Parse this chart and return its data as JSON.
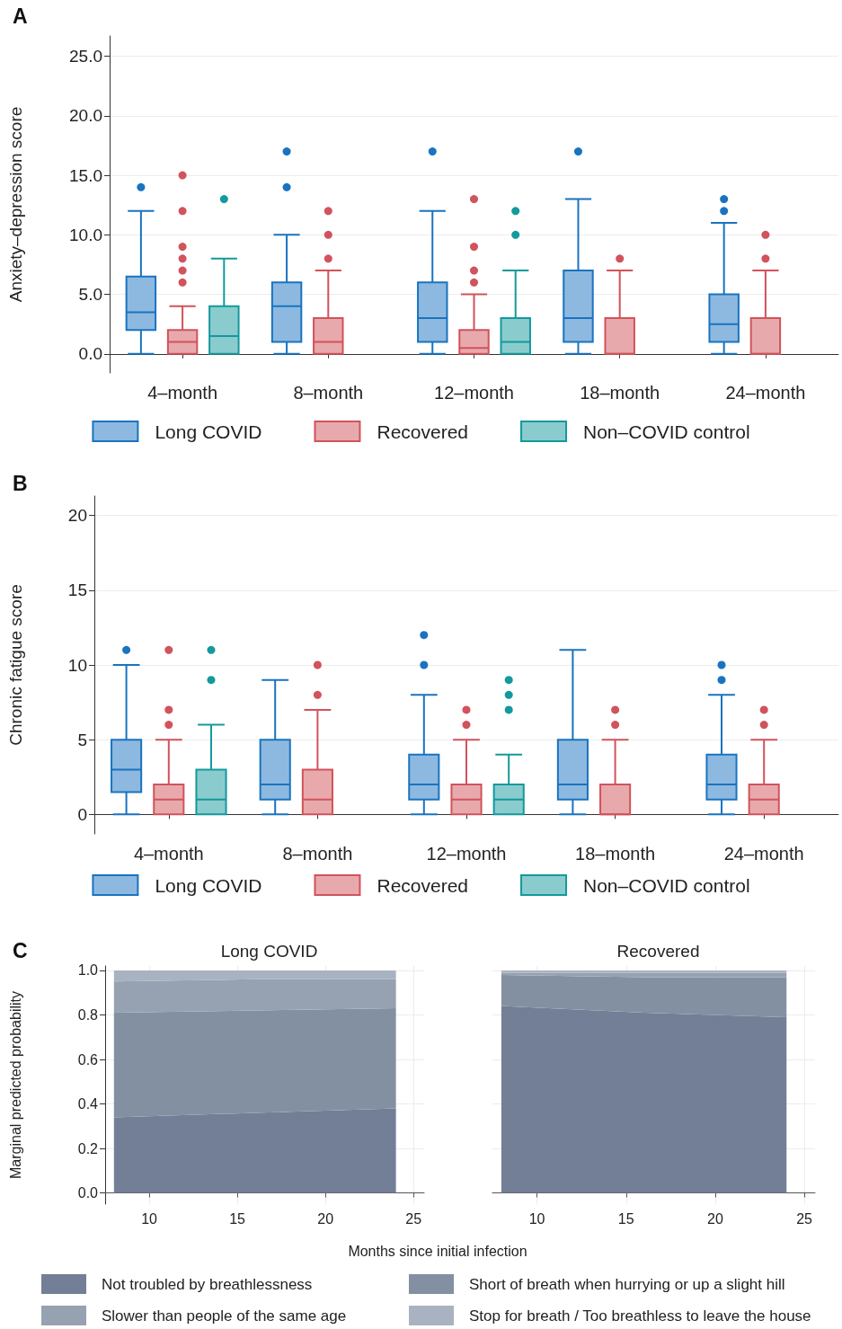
{
  "chart_data": [
    {
      "type": "box",
      "annotations": [
        "A"
      ],
      "ylabel": "Anxiety–depression score",
      "categories": [
        "4–month",
        "8–month",
        "12–month",
        "18–month",
        "24–month"
      ],
      "ylim": [
        -1.6,
        26.7
      ],
      "yticks": [
        {
          "value": 0,
          "label": "0.0"
        },
        {
          "value": 5,
          "label": "5.0"
        },
        {
          "value": 10,
          "label": "10.0"
        },
        {
          "value": 15,
          "label": "15.0"
        },
        {
          "value": 20,
          "label": "20.0"
        },
        {
          "value": 25,
          "label": "25.0"
        }
      ],
      "grid": "y",
      "legend": "bottom",
      "series": [
        {
          "name": "Long COVID",
          "color": "#1a73c0",
          "boxes": [
            {
              "low": 0,
              "q1": 2,
              "median": 3.5,
              "q3": 6.5,
              "high": 12,
              "outliers": [
                14
              ]
            },
            {
              "low": 0,
              "q1": 1,
              "median": 4,
              "q3": 6,
              "high": 10,
              "outliers": [
                14,
                17
              ]
            },
            {
              "low": 0,
              "q1": 1,
              "median": 3,
              "q3": 6,
              "high": 12,
              "outliers": [
                17
              ]
            },
            {
              "low": 0,
              "q1": 1,
              "median": 3,
              "q3": 7,
              "high": 13,
              "outliers": [
                17
              ]
            },
            {
              "low": 0,
              "q1": 1,
              "median": 2.5,
              "q3": 5,
              "high": 11,
              "outliers": [
                12,
                13
              ]
            }
          ]
        },
        {
          "name": "Recovered",
          "color": "#d1535b",
          "boxes": [
            {
              "low": 0,
              "q1": 0,
              "median": 1,
              "q3": 2,
              "high": 4,
              "outliers": [
                6,
                7,
                8,
                9,
                12,
                15
              ]
            },
            {
              "low": 0,
              "q1": 0,
              "median": 1,
              "q3": 3,
              "high": 7,
              "outliers": [
                8,
                10,
                12
              ]
            },
            {
              "low": 0,
              "q1": 0,
              "median": 0.5,
              "q3": 2,
              "high": 5,
              "outliers": [
                6,
                7,
                9,
                13
              ]
            },
            {
              "low": 0,
              "q1": 0,
              "median": 0,
              "q3": 3,
              "high": 7,
              "outliers": [
                8
              ]
            },
            {
              "low": 0,
              "q1": 0,
              "median": 0,
              "q3": 3,
              "high": 7,
              "outliers": [
                8,
                10
              ]
            }
          ]
        },
        {
          "name": "Non–COVID control",
          "color": "#14999c",
          "boxes": [
            {
              "low": 0,
              "q1": 0,
              "median": 1.5,
              "q3": 4,
              "high": 8,
              "outliers": [
                13
              ]
            },
            null,
            {
              "low": 0,
              "q1": 0,
              "median": 1,
              "q3": 3,
              "high": 7,
              "outliers": [
                10,
                12
              ]
            },
            null,
            null
          ]
        }
      ]
    },
    {
      "type": "box",
      "annotations": [
        "B"
      ],
      "ylabel": "Chronic fatigue score",
      "categories": [
        "4–month",
        "8–month",
        "12–month",
        "18–month",
        "24–month"
      ],
      "ylim": [
        -1.3,
        21.3
      ],
      "yticks": [
        0,
        5,
        10,
        15,
        20
      ],
      "grid": "y",
      "legend": "bottom",
      "series": [
        {
          "name": "Long COVID",
          "color": "#1a73c0",
          "boxes": [
            {
              "low": 0,
              "q1": 1.5,
              "median": 3,
              "q3": 5,
              "high": 10,
              "outliers": [
                11
              ]
            },
            {
              "low": 0,
              "q1": 1,
              "median": 2,
              "q3": 5,
              "high": 9
            },
            {
              "low": 0,
              "q1": 1,
              "median": 2,
              "q3": 4,
              "high": 8,
              "outliers": [
                10,
                12
              ]
            },
            {
              "low": 0,
              "q1": 1,
              "median": 2,
              "q3": 5,
              "high": 11
            },
            {
              "low": 0,
              "q1": 1,
              "median": 2,
              "q3": 4,
              "high": 8,
              "outliers": [
                9,
                10
              ]
            }
          ]
        },
        {
          "name": "Recovered",
          "color": "#d1535b",
          "boxes": [
            {
              "low": 0,
              "q1": 0,
              "median": 1,
              "q3": 2,
              "high": 5,
              "outliers": [
                6,
                7,
                11
              ]
            },
            {
              "low": 0,
              "q1": 0,
              "median": 1,
              "q3": 3,
              "high": 7,
              "outliers": [
                8,
                10
              ]
            },
            {
              "low": 0,
              "q1": 0,
              "median": 1,
              "q3": 2,
              "high": 5,
              "outliers": [
                6,
                7
              ]
            },
            {
              "low": 0,
              "q1": 0,
              "median": 0,
              "q3": 2,
              "high": 5,
              "outliers": [
                6,
                7
              ]
            },
            {
              "low": 0,
              "q1": 0,
              "median": 1,
              "q3": 2,
              "high": 5,
              "outliers": [
                6,
                7
              ]
            }
          ]
        },
        {
          "name": "Non–COVID control",
          "color": "#14999c",
          "boxes": [
            {
              "low": 0,
              "q1": 0,
              "median": 1,
              "q3": 3,
              "high": 6,
              "outliers": [
                9,
                11
              ]
            },
            null,
            {
              "low": 0,
              "q1": 0,
              "median": 1,
              "q3": 2,
              "high": 4,
              "outliers": [
                7,
                8,
                9
              ]
            },
            null,
            null
          ]
        }
      ]
    },
    {
      "type": "area",
      "stacked": true,
      "annotations": [
        "C"
      ],
      "title": "Long COVID",
      "xlabel": "Months since initial infection",
      "ylabel": "Marginal predicted probability",
      "x": [
        8,
        16,
        24
      ],
      "xlim": [
        7.5,
        25.6
      ],
      "xticks": [
        10,
        15,
        20,
        25
      ],
      "ylim": [
        -0.05,
        1.02
      ],
      "yticks": [
        {
          "value": 0,
          "label": "0.0"
        },
        {
          "value": 0.2,
          "label": "0.2"
        },
        {
          "value": 0.4,
          "label": "0.4"
        },
        {
          "value": 0.6,
          "label": "0.6"
        },
        {
          "value": 0.8,
          "label": "0.8"
        },
        {
          "value": 1,
          "label": "1.0"
        }
      ],
      "grid": true,
      "legend": "bottom",
      "series": [
        {
          "name": "Not troubled by breathlessness",
          "color": "#727f96",
          "values": [
            0.34,
            0.36,
            0.38
          ]
        },
        {
          "name": "Short of breath when hurrying or up a slight hill",
          "color": "#8390a2",
          "values": [
            0.47,
            0.46,
            0.45
          ]
        },
        {
          "name": "Slower than people of the same age",
          "color": "#96a1b1",
          "values": [
            0.14,
            0.14,
            0.13
          ]
        },
        {
          "name": "Stop for breath / Too breathless to leave the house",
          "color": "#a9b2c1",
          "values": [
            0.05,
            0.04,
            0.04
          ]
        }
      ]
    },
    {
      "type": "area",
      "stacked": true,
      "title": "Recovered",
      "x": [
        8,
        16,
        24
      ],
      "xlim": [
        7.5,
        25.6
      ],
      "xticks": [
        10,
        15,
        20,
        25
      ],
      "ylim": [
        -0.05,
        1.02
      ],
      "yticks": [
        0,
        0.2,
        0.4,
        0.6,
        0.8,
        1
      ],
      "tick_labels": "x",
      "grid": true,
      "series": [
        {
          "color": "#727f96",
          "values": [
            0.84,
            0.81,
            0.79
          ]
        },
        {
          "color": "#8390a2",
          "values": [
            0.14,
            0.16,
            0.18
          ]
        },
        {
          "color": "#96a1b1",
          "values": [
            0.01,
            0.02,
            0.02
          ]
        },
        {
          "color": "#a9b2c1",
          "values": [
            0.01,
            0.01,
            0.01
          ]
        }
      ]
    }
  ]
}
